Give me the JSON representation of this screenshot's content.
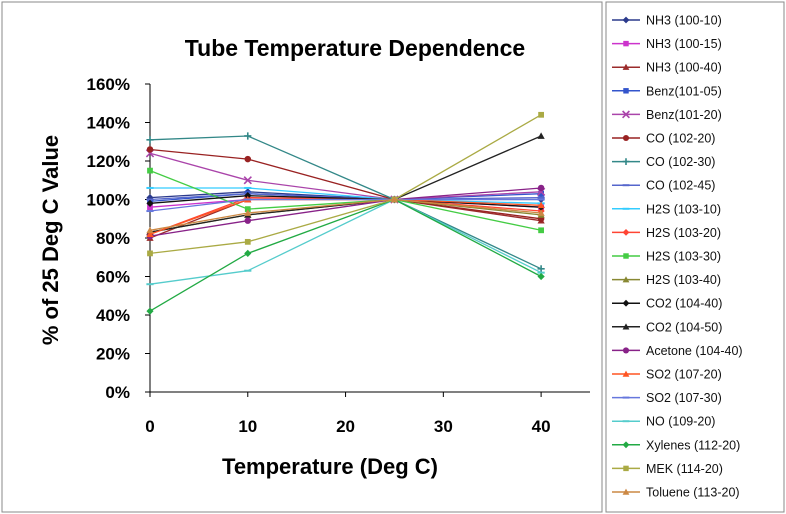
{
  "chart_data": {
    "type": "line",
    "title": "Tube Temperature Dependence",
    "xlabel": "Temperature (Deg C)",
    "ylabel": "% of 25 Deg C Value",
    "x": [
      0,
      10,
      25,
      40
    ],
    "xlim": [
      0,
      45
    ],
    "xticks": [
      0,
      10,
      20,
      30,
      40
    ],
    "ylim": [
      0,
      160
    ],
    "yticks": [
      "0%",
      "20%",
      "40%",
      "60%",
      "80%",
      "100%",
      "120%",
      "140%",
      "160%"
    ],
    "grid": false,
    "legend": "right",
    "series": [
      {
        "name": "NH3 (100-10)",
        "color": "#2b3a8c",
        "marker": "diamond",
        "values": [
          101,
          104,
          100,
          100
        ]
      },
      {
        "name": "NH3 (100-15)",
        "color": "#cc33cc",
        "marker": "square",
        "values": [
          96,
          100,
          100,
          96
        ]
      },
      {
        "name": "NH3 (100-40)",
        "color": "#9b2b2b",
        "marker": "triangle",
        "values": [
          80,
          100,
          100,
          89
        ]
      },
      {
        "name": "Benz(101-05)",
        "color": "#3355cc",
        "marker": "square",
        "values": [
          99,
          103,
          100,
          103
        ]
      },
      {
        "name": "Benz(101-20)",
        "color": "#aa44aa",
        "marker": "x",
        "values": [
          124,
          110,
          100,
          104
        ]
      },
      {
        "name": "CO (102-20)",
        "color": "#992222",
        "marker": "circle",
        "values": [
          126,
          121,
          100,
          90
        ]
      },
      {
        "name": "CO (102-30)",
        "color": "#338888",
        "marker": "plus",
        "values": [
          131,
          133,
          100,
          64
        ]
      },
      {
        "name": "CO (102-45)",
        "color": "#5566cc",
        "marker": "dash",
        "values": [
          100,
          103,
          100,
          101
        ]
      },
      {
        "name": "H2S (103-10)",
        "color": "#33ccff",
        "marker": "dash",
        "values": [
          106,
          106,
          100,
          98
        ]
      },
      {
        "name": "H2S (103-20)",
        "color": "#ff4433",
        "marker": "diamond",
        "values": [
          82,
          101,
          100,
          94
        ]
      },
      {
        "name": "H2S (103-30)",
        "color": "#44cc44",
        "marker": "square",
        "values": [
          115,
          95,
          100,
          84
        ]
      },
      {
        "name": "H2S (103-40)",
        "color": "#888833",
        "marker": "triangle",
        "values": [
          83,
          92,
          100,
          92
        ]
      },
      {
        "name": "CO2 (104-40)",
        "color": "#111111",
        "marker": "diamond",
        "values": [
          98,
          102,
          100,
          96
        ]
      },
      {
        "name": "CO2 (104-50)",
        "color": "#222222",
        "marker": "triangle",
        "values": [
          83,
          92,
          100,
          133
        ]
      },
      {
        "name": "Acetone (104-40)",
        "color": "#882288",
        "marker": "circle",
        "values": [
          81,
          89,
          100,
          106
        ]
      },
      {
        "name": "SO2 (107-20)",
        "color": "#ff5522",
        "marker": "triangle",
        "values": [
          82,
          100,
          100,
          97
        ]
      },
      {
        "name": "SO2 (107-30)",
        "color": "#6677dd",
        "marker": "dash",
        "values": [
          94,
          100,
          100,
          100
        ]
      },
      {
        "name": "NO (109-20)",
        "color": "#55cccc",
        "marker": "dash",
        "values": [
          56,
          63,
          100,
          62
        ]
      },
      {
        "name": "Xylenes (112-20)",
        "color": "#22aa44",
        "marker": "diamond",
        "values": [
          42,
          72,
          100,
          60
        ]
      },
      {
        "name": "MEK (114-20)",
        "color": "#aaaa44",
        "marker": "square",
        "values": [
          72,
          78,
          100,
          144
        ]
      },
      {
        "name": "Toluene (113-20)",
        "color": "#cc8844",
        "marker": "triangle",
        "values": [
          84,
          93,
          100,
          93
        ]
      }
    ]
  }
}
